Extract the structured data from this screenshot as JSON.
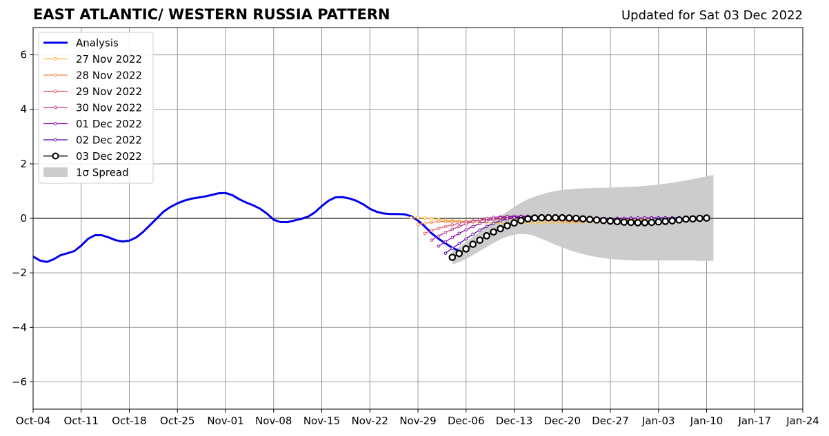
{
  "header": {
    "title": "EAST ATLANTIC/ WESTERN RUSSIA PATTERN",
    "updated": "Updated for Sat 03 Dec 2022"
  },
  "chart_data": {
    "type": "line",
    "xlim": [
      "2022-10-04",
      "2023-01-24"
    ],
    "ylim": [
      -7,
      7
    ],
    "x_ticks": [
      "Oct-04",
      "Oct-11",
      "Oct-18",
      "Oct-25",
      "Nov-01",
      "Nov-08",
      "Nov-15",
      "Nov-22",
      "Nov-29",
      "Dec-06",
      "Dec-13",
      "Dec-20",
      "Dec-27",
      "Jan-03",
      "Jan-10",
      "Jan-17",
      "Jan-24"
    ],
    "y_ticks": [
      6,
      4,
      2,
      0,
      -2,
      -4,
      -6
    ],
    "y_tick_labels": [
      "6",
      "4",
      "2",
      "0",
      "−2",
      "−4",
      "−6"
    ],
    "grid": true,
    "legend_position": "top-left",
    "zero_line": true,
    "analysis": {
      "name": "Analysis",
      "color": "#0000ee",
      "start": "2022-10-04",
      "values": [
        -1.4,
        -1.55,
        -1.6,
        -1.5,
        -1.35,
        -1.28,
        -1.2,
        -1.0,
        -0.75,
        -0.62,
        -0.62,
        -0.7,
        -0.8,
        -0.85,
        -0.82,
        -0.7,
        -0.5,
        -0.25,
        0.0,
        0.25,
        0.42,
        0.55,
        0.65,
        0.72,
        0.76,
        0.8,
        0.86,
        0.92,
        0.93,
        0.85,
        0.7,
        0.58,
        0.48,
        0.36,
        0.18,
        -0.05,
        -0.14,
        -0.14,
        -0.08,
        -0.02,
        0.06,
        0.22,
        0.45,
        0.65,
        0.77,
        0.78,
        0.73,
        0.65,
        0.52,
        0.35,
        0.24,
        0.18,
        0.16,
        0.16,
        0.15,
        0.08,
        -0.08,
        -0.3,
        -0.55,
        -0.75,
        -0.92,
        -1.08,
        -1.2
      ]
    },
    "forecasts": [
      {
        "name": "27 Nov 2022",
        "color": "#fbb32f",
        "start": "2022-11-28",
        "values": [
          0.02,
          0.02,
          0.01,
          -0.01,
          -0.04,
          -0.06,
          -0.08,
          -0.1,
          -0.12,
          -0.14,
          -0.15,
          -0.16,
          -0.17,
          -0.18,
          -0.18,
          -0.18,
          -0.17,
          -0.17,
          -0.16,
          -0.16,
          -0.15,
          -0.15,
          -0.14,
          -0.14,
          -0.14,
          -0.14,
          -0.13,
          -0.13,
          -0.12,
          -0.12,
          -0.11,
          -0.1,
          -0.09,
          -0.08,
          -0.06
        ]
      },
      {
        "name": "28 Nov 2022",
        "color": "#f3843e",
        "start": "2022-11-29",
        "values": [
          -0.22,
          -0.18,
          -0.15,
          -0.12,
          -0.12,
          -0.12,
          -0.12,
          -0.11,
          -0.1,
          -0.08,
          -0.06,
          -0.04,
          -0.03,
          -0.02,
          -0.02,
          -0.03,
          -0.04,
          -0.05,
          -0.06,
          -0.07,
          -0.08,
          -0.09,
          -0.1,
          -0.1,
          -0.1,
          -0.1,
          -0.09,
          -0.08,
          -0.07,
          -0.06,
          -0.05,
          -0.04,
          -0.03,
          -0.02,
          -0.01
        ]
      },
      {
        "name": "29 Nov 2022",
        "color": "#d8576b",
        "start": "2022-11-30",
        "values": [
          -0.55,
          -0.45,
          -0.37,
          -0.3,
          -0.24,
          -0.18,
          -0.13,
          -0.09,
          -0.06,
          -0.03,
          0.0,
          0.02,
          0.03,
          0.04,
          0.04,
          0.04,
          0.03,
          0.02,
          0.01,
          0.0,
          -0.01,
          -0.02,
          -0.03,
          -0.04,
          -0.05,
          -0.05,
          -0.05,
          -0.04,
          -0.03,
          -0.02,
          -0.01,
          0.0,
          0.01,
          0.02,
          0.02
        ]
      },
      {
        "name": "30 Nov 2022",
        "color": "#bc3487",
        "start": "2022-12-01",
        "values": [
          -0.8,
          -0.65,
          -0.52,
          -0.4,
          -0.3,
          -0.2,
          -0.12,
          -0.05,
          0.0,
          0.04,
          0.06,
          0.07,
          0.08,
          0.07,
          0.06,
          0.05,
          0.04,
          0.03,
          0.02,
          0.01,
          0.0,
          -0.01,
          -0.02,
          -0.02,
          -0.02,
          -0.02,
          -0.01,
          0.0,
          0.0,
          0.01,
          0.01,
          0.02,
          0.02,
          0.02,
          0.02
        ]
      },
      {
        "name": "01 Dec 2022",
        "color": "#8b0aa5",
        "start": "2022-12-02",
        "values": [
          -1.02,
          -0.86,
          -0.7,
          -0.55,
          -0.42,
          -0.3,
          -0.19,
          -0.1,
          -0.03,
          0.02,
          0.05,
          0.07,
          0.08,
          0.08,
          0.07,
          0.06,
          0.05,
          0.04,
          0.03,
          0.02,
          0.01,
          0.0,
          0.0,
          -0.01,
          -0.01,
          -0.01,
          0.0,
          0.0,
          0.01,
          0.01,
          0.01,
          0.02,
          0.02,
          0.02,
          0.02
        ]
      },
      {
        "name": "02 Dec 2022",
        "color": "#5402a3",
        "start": "2022-12-03",
        "values": [
          -1.28,
          -1.1,
          -0.93,
          -0.75,
          -0.58,
          -0.43,
          -0.3,
          -0.18,
          -0.09,
          -0.02,
          0.02,
          0.05,
          0.06,
          0.06,
          0.05,
          0.04,
          0.03,
          0.02,
          0.01,
          0.0,
          0.0,
          -0.01,
          -0.01,
          -0.01,
          -0.01,
          0.0,
          0.0,
          0.0,
          0.01,
          0.01,
          0.01,
          0.01,
          0.02,
          0.02,
          0.02
        ]
      },
      {
        "name": "03 Dec 2022",
        "color": "#000000",
        "start": "2022-12-04",
        "values": [
          -1.43,
          -1.29,
          -1.12,
          -0.95,
          -0.8,
          -0.64,
          -0.5,
          -0.38,
          -0.27,
          -0.17,
          -0.08,
          -0.02,
          0.01,
          0.02,
          0.02,
          0.02,
          0.02,
          0.01,
          0.0,
          -0.02,
          -0.04,
          -0.06,
          -0.08,
          -0.1,
          -0.12,
          -0.14,
          -0.15,
          -0.16,
          -0.16,
          -0.15,
          -0.13,
          -0.11,
          -0.09,
          -0.06,
          -0.03,
          -0.02,
          0.0,
          0.01
        ]
      }
    ],
    "spread": {
      "name": "1σ Spread",
      "color": "#cccccc",
      "start": "2022-12-04",
      "upper": [
        -1.2,
        -1.05,
        -0.87,
        -0.68,
        -0.48,
        -0.28,
        -0.1,
        0.08,
        0.25,
        0.42,
        0.57,
        0.7,
        0.8,
        0.88,
        0.95,
        1.0,
        1.04,
        1.07,
        1.09,
        1.1,
        1.11,
        1.12,
        1.12,
        1.13,
        1.14,
        1.15,
        1.16,
        1.17,
        1.19,
        1.21,
        1.24,
        1.27,
        1.31,
        1.35,
        1.39,
        1.44,
        1.49,
        1.54,
        1.6
      ],
      "lower": [
        -1.7,
        -1.6,
        -1.5,
        -1.35,
        -1.2,
        -1.05,
        -0.9,
        -0.77,
        -0.67,
        -0.6,
        -0.57,
        -0.59,
        -0.65,
        -0.75,
        -0.86,
        -0.97,
        -1.07,
        -1.16,
        -1.24,
        -1.31,
        -1.37,
        -1.42,
        -1.46,
        -1.49,
        -1.51,
        -1.53,
        -1.54,
        -1.55,
        -1.55,
        -1.55,
        -1.55,
        -1.55,
        -1.55,
        -1.55,
        -1.55,
        -1.55,
        -1.56,
        -1.56,
        -1.56
      ]
    }
  }
}
